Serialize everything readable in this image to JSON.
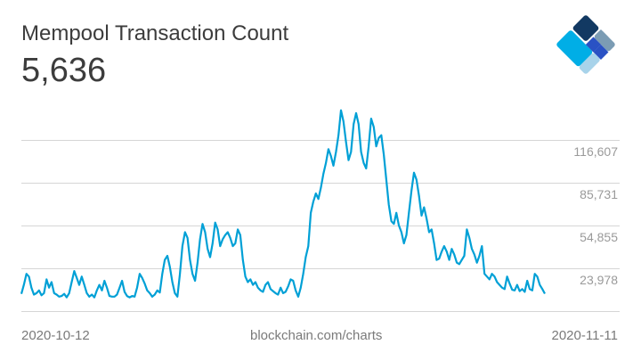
{
  "header": {
    "title": "Mempool Transaction Count",
    "current_value": "5,636"
  },
  "logo": {
    "icon": "blockchain-diamond-logo",
    "colors": [
      "#7b9cb4",
      "#123962",
      "#2a52c4",
      "#00aee6",
      "#a8d3ea"
    ]
  },
  "footer": {
    "start_date": "2020-10-12",
    "source": "blockchain.com/charts",
    "end_date": "2020-11-11"
  },
  "colors": {
    "line": "#00a0d6",
    "grid": "#d6d6d6",
    "title_text": "#3c3c3c",
    "axis_text": "#9a9a9a"
  },
  "chart_data": {
    "type": "line",
    "title": "Mempool Transaction Count",
    "subtitle": "5,636",
    "xlabel": "",
    "ylabel": "",
    "x_range": [
      "2020-10-12",
      "2020-11-11"
    ],
    "y_tick_labels": [
      "116,607",
      "85,731",
      "54,855",
      "23,978"
    ],
    "y_ticks": [
      116607,
      85731,
      54855,
      23978
    ],
    "ylim": [
      -6898,
      147483
    ],
    "grid": true,
    "legend": "none",
    "series": [
      {
        "name": "Mempool Transaction Count",
        "x_start": "2020-10-12",
        "x_end": "2020-11-11",
        "values": [
          5500,
          12000,
          20000,
          18000,
          10000,
          5000,
          6000,
          8000,
          4500,
          6000,
          16000,
          10000,
          14000,
          6000,
          5000,
          3500,
          4000,
          5500,
          3000,
          6000,
          14000,
          22000,
          17000,
          12000,
          18000,
          12000,
          6000,
          3500,
          5000,
          3000,
          8000,
          12000,
          8000,
          15000,
          10000,
          4000,
          3500,
          3500,
          5000,
          10000,
          15000,
          7000,
          4000,
          3000,
          4000,
          3500,
          10000,
          20000,
          17000,
          13000,
          8000,
          6000,
          3500,
          5000,
          8000,
          6500,
          20000,
          30000,
          33000,
          25000,
          14000,
          6000,
          3500,
          20000,
          40000,
          50000,
          46000,
          30000,
          20000,
          15000,
          28000,
          45000,
          56000,
          50000,
          38000,
          32000,
          42000,
          57000,
          52000,
          40000,
          45000,
          48000,
          50000,
          46000,
          40000,
          42000,
          52000,
          48000,
          30000,
          18000,
          14000,
          16000,
          12000,
          14000,
          10000,
          8000,
          7000,
          12000,
          14000,
          9000,
          7500,
          6000,
          5000,
          10000,
          6000,
          7000,
          11000,
          16000,
          15000,
          8000,
          3500,
          10000,
          20000,
          32000,
          40000,
          64000,
          72000,
          78000,
          74000,
          82000,
          92000,
          100000,
          110000,
          105000,
          98000,
          108000,
          120000,
          138000,
          130000,
          115000,
          102000,
          108000,
          128000,
          136000,
          128000,
          108000,
          100000,
          96000,
          112000,
          132000,
          126000,
          112000,
          118000,
          120000,
          106000,
          88000,
          70000,
          58000,
          56000,
          64000,
          55000,
          50000,
          42000,
          48000,
          64000,
          80000,
          93000,
          88000,
          76000,
          62000,
          68000,
          60000,
          50000,
          52000,
          42000,
          30000,
          31000,
          36000,
          40000,
          36000,
          30000,
          38000,
          34000,
          28000,
          27000,
          30000,
          33000,
          52000,
          46000,
          38000,
          34000,
          28000,
          33000,
          40000,
          20000,
          18000,
          16000,
          20000,
          18000,
          14000,
          12000,
          10000,
          9000,
          18000,
          13000,
          8500,
          8000,
          12000,
          7500,
          9000,
          7000,
          15000,
          9000,
          8000,
          20000,
          18000,
          12000,
          9000,
          5636
        ]
      }
    ]
  }
}
